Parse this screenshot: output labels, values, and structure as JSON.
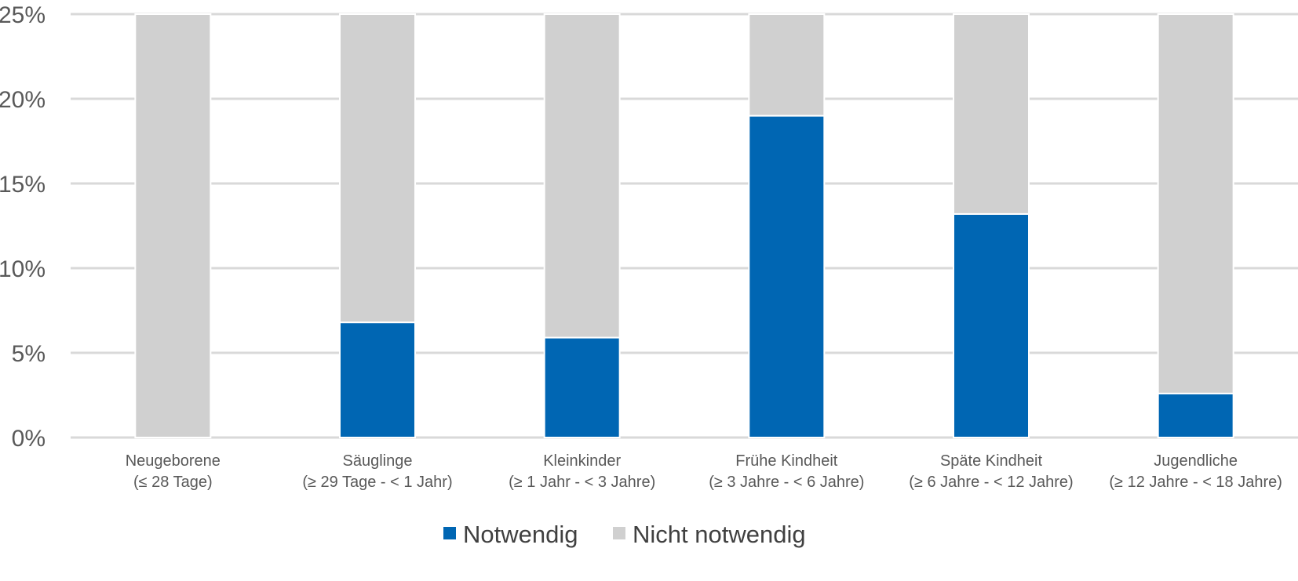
{
  "chart_data": {
    "type": "bar",
    "stacked": true,
    "categories": [
      [
        "Neugeborene",
        "(≤ 28 Tage)"
      ],
      [
        "Säuglinge",
        "(≥ 29 Tage - < 1 Jahr)"
      ],
      [
        "Kleinkinder",
        "(≥ 1 Jahr - < 3 Jahre)"
      ],
      [
        "Frühe Kindheit",
        "(≥ 3 Jahre - < 6 Jahre)"
      ],
      [
        "Späte Kindheit",
        "(≥ 6 Jahre - < 12 Jahre)"
      ],
      [
        "Jugendliche",
        "(≥ 12 Jahre - < 18 Jahre)"
      ]
    ],
    "series": [
      {
        "name": "Notwendig",
        "color": "#0066b3",
        "values": [
          0,
          6.8,
          5.9,
          19.0,
          13.2,
          2.6
        ]
      },
      {
        "name": "Nicht notwendig",
        "color": "#d0d0d0",
        "values": [
          25.0,
          18.2,
          19.1,
          6.0,
          11.8,
          22.4
        ]
      }
    ],
    "ylim": [
      0,
      25
    ],
    "yticks": [
      0,
      5,
      10,
      15,
      20,
      25
    ],
    "ytick_labels": [
      "0%",
      "5%",
      "10%",
      "15%",
      "20%",
      "25%"
    ],
    "grid": true,
    "legend_position": "bottom-center"
  }
}
